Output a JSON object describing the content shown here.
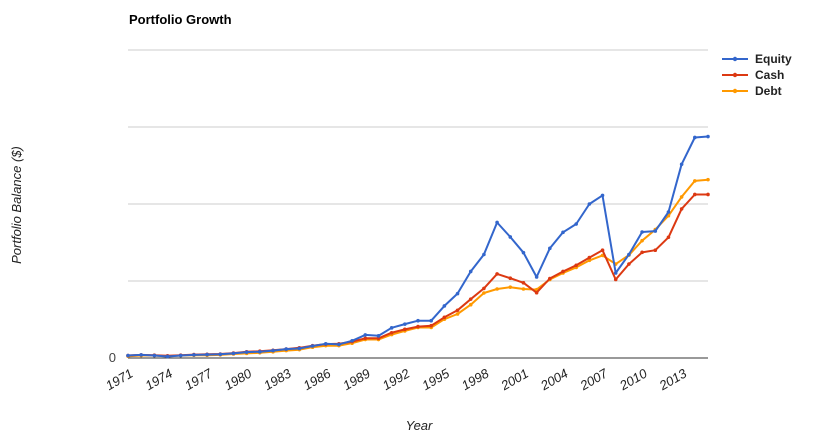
{
  "chart_data": {
    "type": "line",
    "title": "Portfolio Growth",
    "xlabel": "Year",
    "ylabel": "Portfolio Balance ($)",
    "x": [
      1971,
      1972,
      1973,
      1974,
      1975,
      1976,
      1977,
      1978,
      1979,
      1980,
      1981,
      1982,
      1983,
      1984,
      1985,
      1986,
      1987,
      1988,
      1989,
      1990,
      1991,
      1992,
      1993,
      1994,
      1995,
      1996,
      1997,
      1998,
      1999,
      2000,
      2001,
      2002,
      2003,
      2004,
      2005,
      2006,
      2007,
      2008,
      2009,
      2010,
      2011,
      2012,
      2013,
      2014,
      2015
    ],
    "x_tick_labels": [
      "1971",
      "1974",
      "1977",
      "1980",
      "1983",
      "1986",
      "1989",
      "1992",
      "1995",
      "1998",
      "2001",
      "2004",
      "2007",
      "2010",
      "2013"
    ],
    "y_tick_labels": [
      "0"
    ],
    "ylim": [
      0,
      100
    ],
    "gridlines": true,
    "legend_position": "right",
    "series": [
      {
        "name": "Equity",
        "color": "#3366cc",
        "values": [
          0.8,
          1.0,
          0.8,
          0.5,
          0.8,
          1.0,
          1.1,
          1.2,
          1.5,
          1.9,
          2.0,
          2.4,
          2.9,
          3.1,
          3.9,
          4.6,
          4.4,
          5.6,
          7.5,
          7.2,
          9.8,
          11.0,
          12.1,
          12.1,
          16.9,
          20.9,
          28.1,
          33.6,
          44.0,
          39.3,
          34.2,
          26.3,
          35.6,
          40.8,
          43.5,
          50.0,
          52.8,
          27.6,
          33.6,
          40.9,
          41.2,
          47.4,
          62.9,
          71.6,
          71.9
        ]
      },
      {
        "name": "Cash",
        "color": "#dc3912",
        "values": [
          0.8,
          1.0,
          0.9,
          0.7,
          0.9,
          1.1,
          1.2,
          1.3,
          1.6,
          2.0,
          2.2,
          2.5,
          2.9,
          3.3,
          4.0,
          4.5,
          4.6,
          5.3,
          6.4,
          6.4,
          8.2,
          9.3,
          10.2,
          10.5,
          13.2,
          15.5,
          19.1,
          22.6,
          27.3,
          25.9,
          24.4,
          21.2,
          25.8,
          28.1,
          30.1,
          32.6,
          35.0,
          25.5,
          30.5,
          34.3,
          35.0,
          39.2,
          48.4,
          53.1,
          53.1
        ]
      },
      {
        "name": "Debt",
        "color": "#ff9900",
        "values": [
          0.6,
          0.8,
          0.8,
          0.6,
          0.8,
          0.9,
          0.9,
          1.0,
          1.3,
          1.5,
          1.7,
          2.0,
          2.4,
          2.7,
          3.5,
          4.0,
          4.0,
          4.8,
          6.0,
          6.0,
          7.6,
          8.8,
          9.9,
          9.9,
          12.6,
          14.3,
          17.3,
          21.1,
          22.4,
          23.0,
          22.4,
          22.2,
          25.5,
          27.6,
          29.4,
          31.7,
          33.3,
          30.5,
          33.4,
          38.1,
          41.7,
          46.2,
          52.3,
          57.5,
          57.9
        ]
      }
    ]
  }
}
